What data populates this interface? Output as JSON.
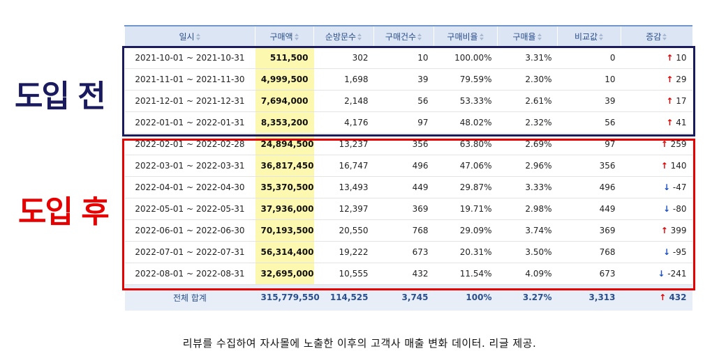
{
  "labels": {
    "before": "도입 전",
    "after": "도입 후"
  },
  "caption": "리뷰를 수집하여 자사몰에 노출한 이후의 고객사 매출 변화 데이터. 리글 제공.",
  "colors": {
    "before_box": "#1a1a5e",
    "after_box": "#e60000",
    "highlight": "#fdf8b0",
    "up": "#e00000",
    "down": "#1a4fc4"
  },
  "table": {
    "headers": [
      "일시",
      "구매액",
      "순방문수",
      "구매건수",
      "구매비율",
      "구매율",
      "비교값",
      "증감"
    ],
    "rows": [
      {
        "period": "2021-10-01 ~ 2021-10-31",
        "amount": "511,500",
        "visitors": "302",
        "purchases": "10",
        "ratio": "100.00%",
        "rate": "3.31%",
        "compare": "0",
        "dir": "up",
        "change": "10"
      },
      {
        "period": "2021-11-01 ~ 2021-11-30",
        "amount": "4,999,500",
        "visitors": "1,698",
        "purchases": "39",
        "ratio": "79.59%",
        "rate": "2.30%",
        "compare": "10",
        "dir": "up",
        "change": "29"
      },
      {
        "period": "2021-12-01 ~ 2021-12-31",
        "amount": "7,694,000",
        "visitors": "2,148",
        "purchases": "56",
        "ratio": "53.33%",
        "rate": "2.61%",
        "compare": "39",
        "dir": "up",
        "change": "17"
      },
      {
        "period": "2022-01-01 ~ 2022-01-31",
        "amount": "8,353,200",
        "visitors": "4,176",
        "purchases": "97",
        "ratio": "48.02%",
        "rate": "2.32%",
        "compare": "56",
        "dir": "up",
        "change": "41"
      },
      {
        "period": "2022-02-01 ~ 2022-02-28",
        "amount": "24,894,500",
        "visitors": "13,237",
        "purchases": "356",
        "ratio": "63.80%",
        "rate": "2.69%",
        "compare": "97",
        "dir": "up",
        "change": "259"
      },
      {
        "period": "2022-03-01 ~ 2022-03-31",
        "amount": "36,817,450",
        "visitors": "16,747",
        "purchases": "496",
        "ratio": "47.06%",
        "rate": "2.96%",
        "compare": "356",
        "dir": "up",
        "change": "140"
      },
      {
        "period": "2022-04-01 ~ 2022-04-30",
        "amount": "35,370,500",
        "visitors": "13,493",
        "purchases": "449",
        "ratio": "29.87%",
        "rate": "3.33%",
        "compare": "496",
        "dir": "down",
        "change": "-47"
      },
      {
        "period": "2022-05-01 ~ 2022-05-31",
        "amount": "37,936,000",
        "visitors": "12,397",
        "purchases": "369",
        "ratio": "19.71%",
        "rate": "2.98%",
        "compare": "449",
        "dir": "down",
        "change": "-80"
      },
      {
        "period": "2022-06-01 ~ 2022-06-30",
        "amount": "70,193,500",
        "visitors": "20,550",
        "purchases": "768",
        "ratio": "29.09%",
        "rate": "3.74%",
        "compare": "369",
        "dir": "up",
        "change": "399"
      },
      {
        "period": "2022-07-01 ~ 2022-07-31",
        "amount": "56,314,400",
        "visitors": "19,222",
        "purchases": "673",
        "ratio": "20.31%",
        "rate": "3.50%",
        "compare": "768",
        "dir": "down",
        "change": "-95"
      },
      {
        "period": "2022-08-01 ~ 2022-08-31",
        "amount": "32,695,000",
        "visitors": "10,555",
        "purchases": "432",
        "ratio": "11.54%",
        "rate": "4.09%",
        "compare": "673",
        "dir": "down",
        "change": "-241"
      }
    ],
    "total": {
      "label": "전체 합계",
      "amount": "315,779,550",
      "visitors": "114,525",
      "purchases": "3,745",
      "ratio": "100%",
      "rate": "3.27%",
      "compare": "3,313",
      "dir": "up",
      "change": "432"
    }
  }
}
